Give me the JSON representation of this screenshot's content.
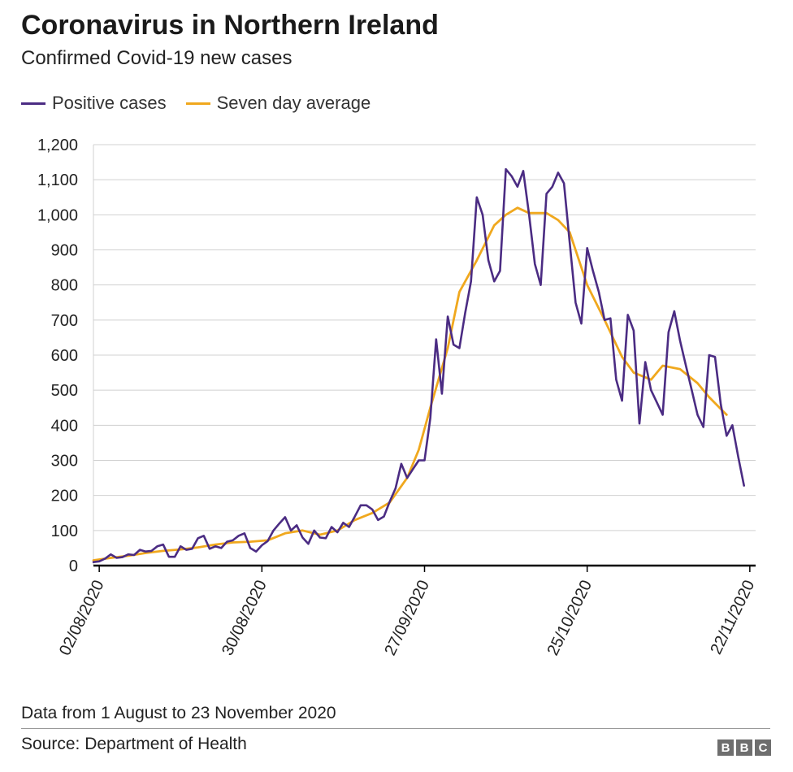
{
  "header": {
    "title": "Coronavirus in Northern Ireland",
    "subtitle": "Confirmed Covid-19 new cases"
  },
  "footer": {
    "note": "Data from 1 August to 23 November 2020",
    "source": "Source: Department of Health",
    "logo": [
      "B",
      "B",
      "C"
    ]
  },
  "colors": {
    "positive": "#4b2c83",
    "average": "#f0a81e",
    "grid": "#d0d0d0",
    "axis": "#000000"
  },
  "chart_data": {
    "type": "line",
    "title": "Coronavirus in Northern Ireland",
    "subtitle": "Confirmed Covid-19 new cases",
    "x_tick_labels": [
      "02/08/2020",
      "30/08/2020",
      "27/09/2020",
      "25/10/2020",
      "22/11/2020"
    ],
    "x_ticks": [
      "2020-08-02",
      "2020-08-30",
      "2020-09-27",
      "2020-10-25",
      "2020-11-22"
    ],
    "xrange": [
      "2020-08-01",
      "2020-11-23"
    ],
    "ylim": [
      0,
      1200
    ],
    "y_ticks": [
      0,
      100,
      200,
      300,
      400,
      500,
      600,
      700,
      800,
      900,
      1000,
      1100,
      1200
    ],
    "grid": "horizontal",
    "legend_position": "top-left",
    "series": [
      {
        "name": "Positive cases",
        "color": "#4b2c83",
        "points": [
          [
            "2020-08-01",
            10
          ],
          [
            "2020-08-02",
            12
          ],
          [
            "2020-08-03",
            20
          ],
          [
            "2020-08-04",
            32
          ],
          [
            "2020-08-05",
            22
          ],
          [
            "2020-08-06",
            24
          ],
          [
            "2020-08-07",
            32
          ],
          [
            "2020-08-08",
            30
          ],
          [
            "2020-08-09",
            45
          ],
          [
            "2020-08-10",
            40
          ],
          [
            "2020-08-11",
            42
          ],
          [
            "2020-08-12",
            55
          ],
          [
            "2020-08-13",
            60
          ],
          [
            "2020-08-14",
            25
          ],
          [
            "2020-08-15",
            25
          ],
          [
            "2020-08-16",
            55
          ],
          [
            "2020-08-17",
            45
          ],
          [
            "2020-08-18",
            48
          ],
          [
            "2020-08-19",
            78
          ],
          [
            "2020-08-20",
            85
          ],
          [
            "2020-08-21",
            48
          ],
          [
            "2020-08-22",
            55
          ],
          [
            "2020-08-23",
            50
          ],
          [
            "2020-08-24",
            68
          ],
          [
            "2020-08-25",
            72
          ],
          [
            "2020-08-26",
            85
          ],
          [
            "2020-08-27",
            92
          ],
          [
            "2020-08-28",
            50
          ],
          [
            "2020-08-29",
            40
          ],
          [
            "2020-08-30",
            58
          ],
          [
            "2020-08-31",
            70
          ],
          [
            "2020-09-01",
            100
          ],
          [
            "2020-09-02",
            120
          ],
          [
            "2020-09-03",
            138
          ],
          [
            "2020-09-04",
            100
          ],
          [
            "2020-09-05",
            115
          ],
          [
            "2020-09-06",
            80
          ],
          [
            "2020-09-07",
            62
          ],
          [
            "2020-09-08",
            100
          ],
          [
            "2020-09-09",
            80
          ],
          [
            "2020-09-10",
            78
          ],
          [
            "2020-09-11",
            110
          ],
          [
            "2020-09-12",
            95
          ],
          [
            "2020-09-13",
            122
          ],
          [
            "2020-09-14",
            110
          ],
          [
            "2020-09-15",
            140
          ],
          [
            "2020-09-16",
            172
          ],
          [
            "2020-09-17",
            172
          ],
          [
            "2020-09-18",
            160
          ],
          [
            "2020-09-19",
            130
          ],
          [
            "2020-09-20",
            140
          ],
          [
            "2020-09-21",
            182
          ],
          [
            "2020-09-22",
            220
          ],
          [
            "2020-09-23",
            290
          ],
          [
            "2020-09-24",
            250
          ],
          [
            "2020-09-25",
            275
          ],
          [
            "2020-09-26",
            300
          ],
          [
            "2020-09-27",
            300
          ],
          [
            "2020-09-28",
            420
          ],
          [
            "2020-09-29",
            645
          ],
          [
            "2020-09-30",
            490
          ],
          [
            "2020-10-01",
            710
          ],
          [
            "2020-10-02",
            630
          ],
          [
            "2020-10-03",
            620
          ],
          [
            "2020-10-04",
            720
          ],
          [
            "2020-10-05",
            810
          ],
          [
            "2020-10-06",
            1050
          ],
          [
            "2020-10-07",
            1000
          ],
          [
            "2020-10-08",
            870
          ],
          [
            "2020-10-09",
            810
          ],
          [
            "2020-10-10",
            840
          ],
          [
            "2020-10-11",
            1130
          ],
          [
            "2020-10-12",
            1110
          ],
          [
            "2020-10-13",
            1080
          ],
          [
            "2020-10-14",
            1125
          ],
          [
            "2020-10-15",
            1000
          ],
          [
            "2020-10-16",
            860
          ],
          [
            "2020-10-17",
            800
          ],
          [
            "2020-10-18",
            1060
          ],
          [
            "2020-10-19",
            1080
          ],
          [
            "2020-10-20",
            1120
          ],
          [
            "2020-10-21",
            1090
          ],
          [
            "2020-10-22",
            920
          ],
          [
            "2020-10-23",
            750
          ],
          [
            "2020-10-24",
            690
          ],
          [
            "2020-10-25",
            905
          ],
          [
            "2020-10-26",
            840
          ],
          [
            "2020-10-27",
            780
          ],
          [
            "2020-10-28",
            700
          ],
          [
            "2020-10-29",
            705
          ],
          [
            "2020-10-30",
            530
          ],
          [
            "2020-10-31",
            470
          ],
          [
            "2020-11-01",
            715
          ],
          [
            "2020-11-02",
            670
          ],
          [
            "2020-11-03",
            405
          ],
          [
            "2020-11-04",
            580
          ],
          [
            "2020-11-05",
            500
          ],
          [
            "2020-11-06",
            465
          ],
          [
            "2020-11-07",
            430
          ],
          [
            "2020-11-08",
            665
          ],
          [
            "2020-11-09",
            725
          ],
          [
            "2020-11-10",
            640
          ],
          [
            "2020-11-11",
            570
          ],
          [
            "2020-11-12",
            500
          ],
          [
            "2020-11-13",
            430
          ],
          [
            "2020-11-14",
            395
          ],
          [
            "2020-11-15",
            600
          ],
          [
            "2020-11-16",
            595
          ],
          [
            "2020-11-17",
            460
          ],
          [
            "2020-11-18",
            370
          ],
          [
            "2020-11-19",
            400
          ],
          [
            "2020-11-20",
            310
          ],
          [
            "2020-11-21",
            228
          ]
        ]
      },
      {
        "name": "Seven day average",
        "color": "#f0a81e",
        "points": [
          [
            "2020-08-01",
            15
          ],
          [
            "2020-08-04",
            22
          ],
          [
            "2020-08-07",
            28
          ],
          [
            "2020-08-10",
            36
          ],
          [
            "2020-08-13",
            42
          ],
          [
            "2020-08-16",
            46
          ],
          [
            "2020-08-19",
            52
          ],
          [
            "2020-08-22",
            60
          ],
          [
            "2020-08-25",
            66
          ],
          [
            "2020-08-28",
            68
          ],
          [
            "2020-08-31",
            72
          ],
          [
            "2020-09-03",
            92
          ],
          [
            "2020-09-06",
            100
          ],
          [
            "2020-09-09",
            88
          ],
          [
            "2020-09-12",
            100
          ],
          [
            "2020-09-15",
            130
          ],
          [
            "2020-09-18",
            150
          ],
          [
            "2020-09-21",
            180
          ],
          [
            "2020-09-24",
            250
          ],
          [
            "2020-09-26",
            330
          ],
          [
            "2020-09-28",
            450
          ],
          [
            "2020-10-01",
            620
          ],
          [
            "2020-10-03",
            780
          ],
          [
            "2020-10-06",
            870
          ],
          [
            "2020-10-09",
            970
          ],
          [
            "2020-10-11",
            1000
          ],
          [
            "2020-10-13",
            1020
          ],
          [
            "2020-10-15",
            1005
          ],
          [
            "2020-10-18",
            1005
          ],
          [
            "2020-10-20",
            985
          ],
          [
            "2020-10-22",
            950
          ],
          [
            "2020-10-25",
            800
          ],
          [
            "2020-10-28",
            700
          ],
          [
            "2020-10-31",
            595
          ],
          [
            "2020-11-02",
            550
          ],
          [
            "2020-11-05",
            530
          ],
          [
            "2020-11-07",
            570
          ],
          [
            "2020-11-10",
            560
          ],
          [
            "2020-11-13",
            520
          ],
          [
            "2020-11-15",
            480
          ],
          [
            "2020-11-18",
            430
          ]
        ]
      }
    ]
  }
}
